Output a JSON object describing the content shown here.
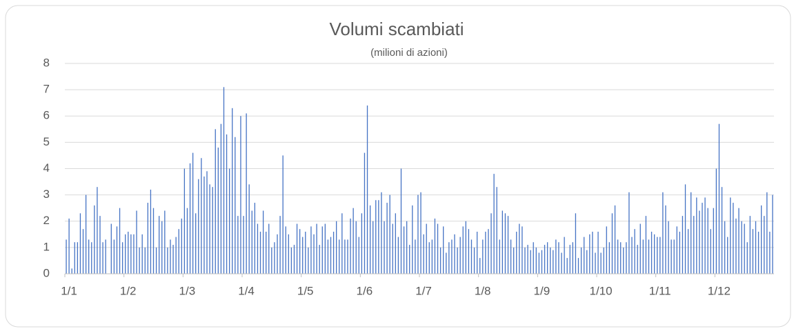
{
  "chart_data": {
    "type": "bar",
    "title": "Volumi scambiati",
    "subtitle": "(milioni di azioni)",
    "categories": [
      "1/1",
      null,
      null,
      null,
      null,
      null,
      null,
      null,
      null,
      null,
      null,
      null,
      null,
      null,
      null,
      null,
      null,
      null,
      null,
      null,
      null,
      "1/2",
      null,
      null,
      null,
      null,
      null,
      null,
      null,
      null,
      null,
      null,
      null,
      null,
      null,
      null,
      null,
      null,
      null,
      null,
      null,
      null,
      "1/3",
      null,
      null,
      null,
      null,
      null,
      null,
      null,
      null,
      null,
      null,
      null,
      null,
      null,
      null,
      null,
      null,
      null,
      null,
      null,
      null,
      "1/4",
      null,
      null,
      null,
      null,
      null,
      null,
      null,
      null,
      null,
      null,
      null,
      null,
      null,
      null,
      null,
      null,
      null,
      null,
      null,
      null,
      "1/5",
      null,
      null,
      null,
      null,
      null,
      null,
      null,
      null,
      null,
      null,
      null,
      null,
      null,
      null,
      null,
      null,
      null,
      null,
      null,
      null,
      "1/6",
      null,
      null,
      null,
      null,
      null,
      null,
      null,
      null,
      null,
      null,
      null,
      null,
      null,
      null,
      null,
      null,
      null,
      null,
      null,
      null,
      "1/7",
      null,
      null,
      null,
      null,
      null,
      null,
      null,
      null,
      null,
      null,
      null,
      null,
      null,
      null,
      null,
      null,
      null,
      null,
      null,
      null,
      "1/8",
      null,
      null,
      null,
      null,
      null,
      null,
      null,
      null,
      null,
      null,
      null,
      null,
      null,
      null,
      null,
      null,
      null,
      null,
      null,
      null,
      "1/9",
      null,
      null,
      null,
      null,
      null,
      null,
      null,
      null,
      null,
      null,
      null,
      null,
      null,
      null,
      null,
      null,
      null,
      null,
      null,
      null,
      "1/10",
      null,
      null,
      null,
      null,
      null,
      null,
      null,
      null,
      null,
      null,
      null,
      null,
      null,
      null,
      null,
      null,
      null,
      null,
      null,
      null,
      "1/11",
      null,
      null,
      null,
      null,
      null,
      null,
      null,
      null,
      null,
      null,
      null,
      null,
      null,
      null,
      null,
      null,
      null,
      null,
      null,
      null,
      "1/12",
      null,
      null,
      null,
      null,
      null,
      null,
      null,
      null,
      null,
      null,
      null,
      null,
      null,
      null,
      null,
      null,
      null,
      null,
      null,
      null
    ],
    "values": [
      1.3,
      2.1,
      0.2,
      1.2,
      1.2,
      2.3,
      1.7,
      3.0,
      1.3,
      1.2,
      2.6,
      3.3,
      2.2,
      1.2,
      1.3,
      0,
      1.9,
      1.3,
      1.8,
      2.5,
      1.2,
      1.5,
      1.6,
      1.5,
      1.5,
      2.4,
      1.0,
      1.5,
      1.0,
      2.7,
      3.2,
      2.5,
      1.0,
      2.2,
      2.0,
      2.4,
      1.0,
      1.3,
      1.1,
      1.4,
      1.7,
      2.1,
      4.0,
      2.5,
      4.2,
      4.6,
      2.3,
      3.6,
      4.4,
      3.7,
      3.9,
      3.4,
      3.3,
      5.5,
      4.8,
      5.7,
      7.1,
      5.3,
      4.0,
      6.3,
      5.2,
      2.2,
      6.0,
      2.2,
      6.1,
      3.4,
      2.4,
      2.7,
      1.9,
      1.6,
      2.4,
      1.6,
      1.9,
      1.0,
      1.2,
      1.5,
      2.2,
      4.5,
      1.8,
      1.5,
      1.0,
      1.1,
      1.9,
      1.7,
      1.4,
      1.6,
      1.0,
      1.8,
      1.5,
      1.9,
      1.1,
      1.8,
      1.9,
      1.3,
      1.4,
      1.6,
      2.0,
      1.3,
      2.3,
      1.3,
      1.3,
      2.1,
      2.5,
      2.0,
      1.4,
      2.3,
      4.6,
      6.4,
      2.6,
      2.0,
      2.8,
      2.8,
      3.1,
      2.0,
      2.7,
      3.0,
      1.9,
      2.3,
      1.4,
      4.0,
      1.8,
      2.0,
      1.1,
      2.6,
      1.3,
      3.0,
      3.1,
      1.5,
      1.9,
      1.2,
      1.3,
      2.1,
      1.9,
      1.0,
      1.8,
      0.8,
      1.2,
      1.3,
      1.5,
      1.0,
      1.4,
      1.8,
      2.0,
      1.7,
      1.3,
      1.0,
      1.6,
      0.6,
      1.3,
      1.6,
      1.7,
      2.3,
      3.8,
      3.3,
      1.3,
      2.4,
      2.3,
      2.2,
      1.3,
      1.0,
      1.6,
      1.9,
      1.8,
      1.0,
      1.1,
      0.9,
      1.2,
      1.0,
      0.8,
      0.9,
      1.1,
      1.2,
      1.0,
      0.9,
      1.3,
      1.2,
      0.8,
      1.4,
      0.6,
      1.1,
      1.2,
      2.3,
      0.6,
      1.0,
      1.4,
      0.9,
      1.5,
      1.6,
      0.8,
      1.6,
      0.8,
      1.0,
      1.8,
      1.2,
      2.3,
      2.6,
      1.3,
      1.2,
      1.0,
      1.2,
      3.1,
      1.4,
      1.7,
      1.1,
      1.9,
      1.3,
      2.2,
      1.3,
      1.6,
      1.5,
      1.4,
      1.4,
      3.1,
      2.6,
      2.0,
      1.3,
      1.3,
      1.8,
      1.6,
      2.2,
      3.4,
      1.7,
      3.1,
      2.2,
      2.9,
      2.4,
      2.7,
      2.9,
      2.5,
      1.7,
      2.5,
      4.0,
      5.7,
      3.3,
      2.0,
      1.4,
      2.9,
      2.7,
      2.1,
      2.5,
      2.0,
      1.9,
      1.2,
      2.2,
      1.7,
      2.0,
      1.6,
      2.6,
      2.2,
      3.1,
      1.6,
      3.0
    ],
    "color": "#4472c4",
    "ylim": [
      0,
      8
    ],
    "yticks": [
      0,
      1,
      2,
      3,
      4,
      5,
      6,
      7,
      8
    ],
    "grid": true
  }
}
